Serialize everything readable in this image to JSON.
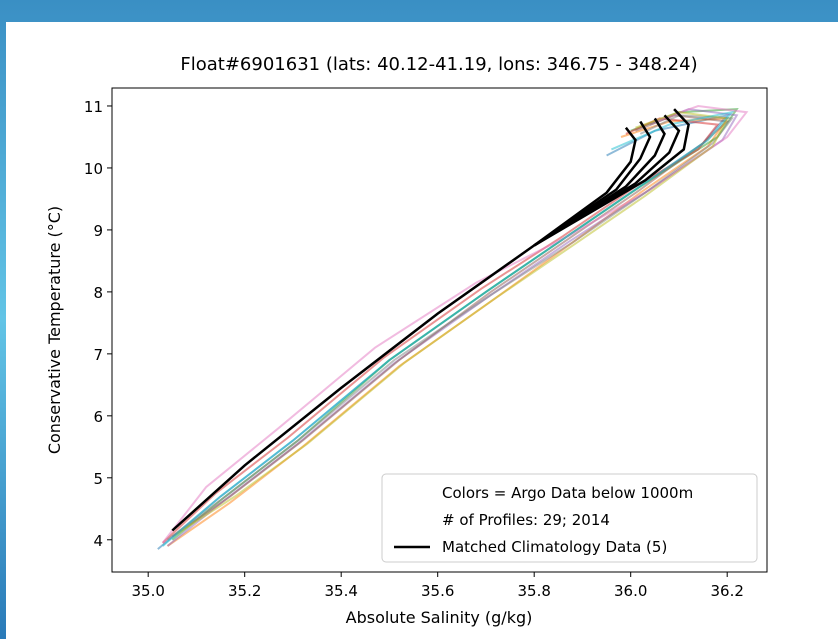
{
  "chart_data": {
    "type": "line",
    "title": "Float#6901631 (lats: 40.12-41.19, lons: 346.75 - 348.24)",
    "x_label": "Absolute Salinity (g/kg)",
    "y_label": "Conservative Temperature (°C)",
    "xlim": [
      34.925,
      36.2825
    ],
    "ylim": [
      3.48,
      11.29
    ],
    "xticks": [
      {
        "value": 35,
        "label": "35.0"
      },
      35.2,
      35.4,
      35.6,
      35.8,
      {
        "value": 36,
        "label": "36.0"
      },
      36.2
    ],
    "yticks": [
      4,
      5,
      6,
      7,
      8,
      9,
      10,
      11
    ],
    "legend_position": "lower right",
    "legend_notes": [
      "Colors = Argo Data below 1000m",
      "# of Profiles: 29;  2014"
    ],
    "series": [
      {
        "color": "#1f77b4",
        "x": [
          35.02,
          35.15,
          35.3,
          35.5,
          35.7,
          35.85,
          36.0,
          36.15,
          36.2,
          36.05,
          35.95
        ],
        "values": [
          3.85,
          4.7,
          5.6,
          6.9,
          8.0,
          8.8,
          9.6,
          10.4,
          10.85,
          10.6,
          10.2
        ]
      },
      {
        "color": "#ff7f0e",
        "x": [
          35.04,
          35.17,
          35.32,
          35.52,
          35.72,
          35.88,
          36.02,
          36.16,
          36.2,
          36.08,
          35.98
        ],
        "values": [
          3.9,
          4.6,
          5.5,
          6.8,
          7.9,
          8.8,
          9.6,
          10.35,
          10.8,
          10.75,
          10.5
        ]
      },
      {
        "color": "#2ca02c",
        "x": [
          35.05,
          35.16,
          35.31,
          35.5,
          35.7,
          35.86,
          36.02,
          36.18,
          36.22,
          36.1,
          36.0
        ],
        "values": [
          4.0,
          4.7,
          5.6,
          6.9,
          8.0,
          8.85,
          9.7,
          10.5,
          10.95,
          10.9,
          10.6
        ]
      },
      {
        "color": "#d62728",
        "x": [
          35.03,
          35.14,
          35.29,
          35.49,
          35.69,
          35.86,
          36.01,
          36.14,
          36.18,
          36.06,
          35.99
        ],
        "values": [
          3.95,
          4.75,
          5.65,
          6.95,
          8.05,
          8.9,
          9.7,
          10.3,
          10.7,
          10.8,
          10.55
        ]
      },
      {
        "color": "#9467bd",
        "x": [
          35.04,
          35.16,
          35.31,
          35.51,
          35.71,
          35.87,
          36.03,
          36.19,
          36.22,
          36.12,
          36.04
        ],
        "values": [
          3.9,
          4.65,
          5.55,
          6.85,
          7.95,
          8.8,
          9.6,
          10.45,
          10.85,
          10.95,
          10.7
        ]
      },
      {
        "color": "#8c564b",
        "x": [
          35.05,
          35.17,
          35.32,
          35.52,
          35.71,
          35.87,
          36.02,
          36.15,
          36.2,
          36.09,
          36.01
        ],
        "values": [
          4.05,
          4.7,
          5.6,
          6.9,
          8.0,
          8.85,
          9.65,
          10.4,
          10.75,
          10.85,
          10.6
        ]
      },
      {
        "color": "#e377c2",
        "x": [
          35.03,
          35.12,
          35.27,
          35.47,
          35.68,
          35.87,
          36.04,
          36.2,
          36.24,
          36.14,
          36.05
        ],
        "values": [
          3.95,
          4.85,
          5.8,
          7.1,
          8.15,
          8.9,
          9.65,
          10.5,
          10.9,
          11.0,
          10.75
        ]
      },
      {
        "color": "#7f7f7f",
        "x": [
          35.04,
          35.16,
          35.31,
          35.51,
          35.71,
          35.88,
          36.03,
          36.17,
          36.21,
          36.1,
          36.02
        ],
        "values": [
          4.0,
          4.7,
          5.6,
          6.9,
          7.95,
          8.8,
          9.6,
          10.4,
          10.8,
          10.85,
          10.55
        ]
      },
      {
        "color": "#bcbd22",
        "x": [
          35.06,
          35.18,
          35.33,
          35.53,
          35.72,
          35.88,
          36.03,
          36.17,
          36.2,
          36.1,
          36.01
        ],
        "values": [
          4.1,
          4.7,
          5.55,
          6.85,
          7.9,
          8.75,
          9.55,
          10.35,
          10.8,
          10.9,
          10.65
        ]
      },
      {
        "color": "#17becf",
        "x": [
          35.03,
          35.15,
          35.3,
          35.5,
          35.7,
          35.86,
          36.01,
          36.16,
          36.21,
          36.08,
          35.96
        ],
        "values": [
          3.9,
          4.7,
          5.6,
          6.9,
          8.0,
          8.85,
          9.65,
          10.45,
          10.9,
          10.7,
          10.3
        ]
      },
      {
        "name": "Matched Climatology Data (5)",
        "color": "#000000",
        "climatology": true,
        "x": [
          35.05,
          35.2,
          35.4,
          35.6,
          35.8,
          35.95,
          36.0,
          36.01,
          35.99
        ],
        "values": [
          4.15,
          5.2,
          6.45,
          7.65,
          8.75,
          9.6,
          10.1,
          10.45,
          10.65
        ]
      },
      {
        "color": "#000000",
        "climatology": true,
        "x": [
          35.8,
          35.97,
          36.02,
          36.04,
          36.02
        ],
        "values": [
          8.75,
          9.65,
          10.15,
          10.5,
          10.75
        ]
      },
      {
        "color": "#000000",
        "climatology": true,
        "x": [
          35.8,
          35.99,
          36.05,
          36.07,
          36.05
        ],
        "values": [
          8.75,
          9.7,
          10.2,
          10.55,
          10.8
        ]
      },
      {
        "color": "#000000",
        "climatology": true,
        "x": [
          35.8,
          36.01,
          36.08,
          36.1,
          36.07
        ],
        "values": [
          8.75,
          9.75,
          10.25,
          10.6,
          10.85
        ]
      },
      {
        "color": "#000000",
        "climatology": true,
        "x": [
          35.8,
          36.03,
          36.11,
          36.12,
          36.09
        ],
        "values": [
          8.75,
          9.8,
          10.3,
          10.7,
          10.95
        ]
      }
    ]
  }
}
